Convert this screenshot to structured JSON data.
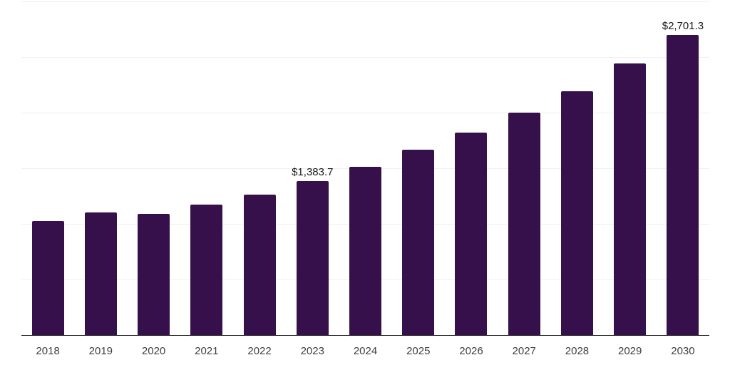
{
  "chart_data": {
    "type": "bar",
    "title": "",
    "xlabel": "",
    "ylabel": "",
    "categories": [
      "2018",
      "2019",
      "2020",
      "2021",
      "2022",
      "2023",
      "2024",
      "2025",
      "2026",
      "2027",
      "2028",
      "2029",
      "2030"
    ],
    "values": [
      1025,
      1105,
      1090,
      1175,
      1265,
      1383.7,
      1510,
      1665,
      1820,
      2000,
      2195,
      2445,
      2701.3
    ],
    "data_labels": {
      "2023": "$1,383.7",
      "2030": "$2,701.3"
    },
    "ylim": [
      0,
      3000
    ],
    "gridline_step": 500,
    "grid": "horizontal",
    "y_axis_tick_labels_visible": false,
    "legend": "none",
    "colors": {
      "bar": "#36104a",
      "axis_line": "#1f1f1f",
      "gridline": "#f0f0f2",
      "tick_label": "#404040",
      "data_label": "#1a1a1a",
      "background": "#ffffff"
    }
  }
}
